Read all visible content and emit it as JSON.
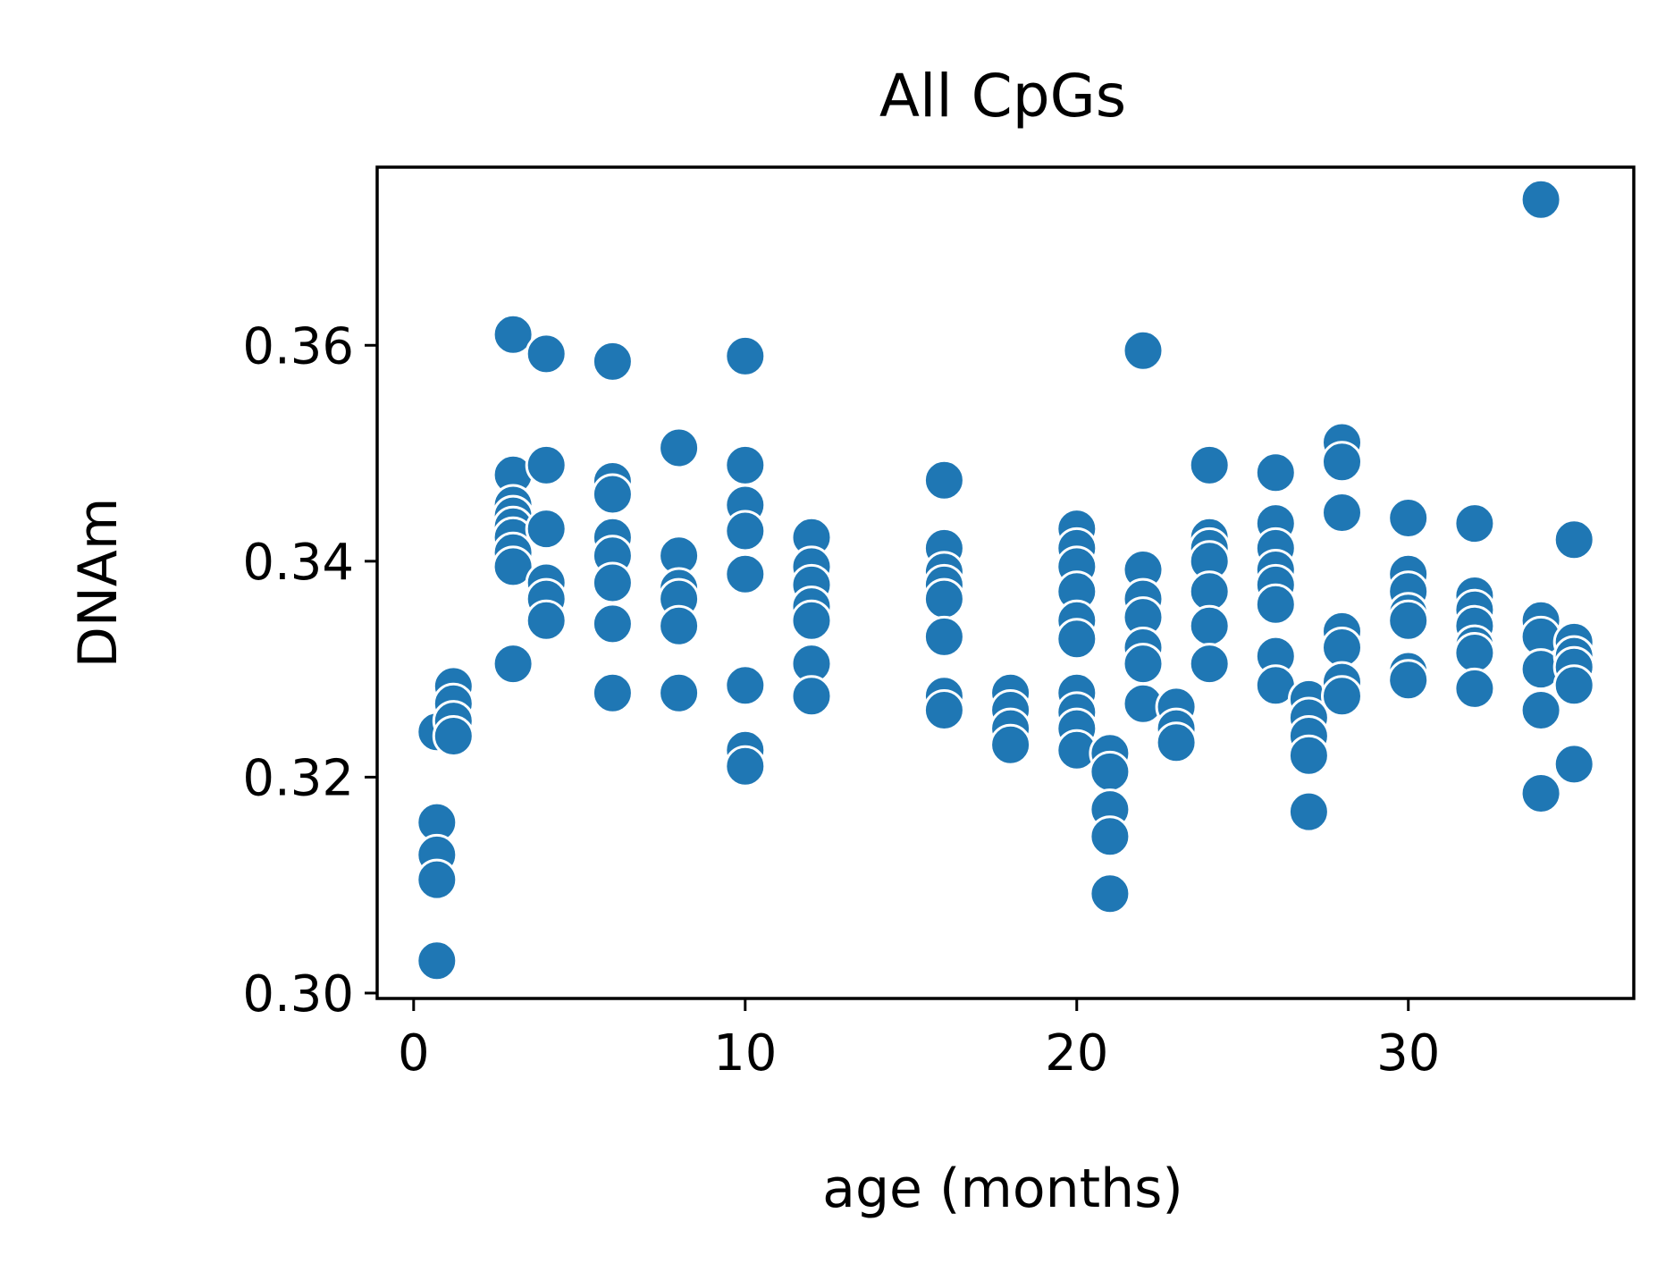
{
  "chart_data": {
    "type": "scatter",
    "title": "All CpGs",
    "xlabel": "age (months)",
    "ylabel": "DNAm",
    "xlim": [
      -1.1,
      36.8
    ],
    "ylim": [
      0.2995,
      0.3765
    ],
    "xticks": [
      0,
      10,
      20,
      30
    ],
    "xtick_labels": [
      "0",
      "10",
      "20",
      "30"
    ],
    "yticks": [
      0.3,
      0.32,
      0.34,
      0.36
    ],
    "ytick_labels": [
      "0.30",
      "0.32",
      "0.34",
      "0.36"
    ],
    "grid": false,
    "color": "#1f77b4",
    "points": [
      [
        0.7,
        0.3242
      ],
      [
        0.7,
        0.3158
      ],
      [
        0.7,
        0.3128
      ],
      [
        0.7,
        0.3105
      ],
      [
        0.7,
        0.303
      ],
      [
        1.2,
        0.3284
      ],
      [
        1.2,
        0.3268
      ],
      [
        1.2,
        0.3252
      ],
      [
        1.2,
        0.3238
      ],
      [
        3,
        0.361
      ],
      [
        3,
        0.348
      ],
      [
        3,
        0.3452
      ],
      [
        3,
        0.3442
      ],
      [
        3,
        0.3432
      ],
      [
        3,
        0.3422
      ],
      [
        3,
        0.3408
      ],
      [
        3,
        0.3395
      ],
      [
        3,
        0.3305
      ],
      [
        4,
        0.3592
      ],
      [
        4,
        0.3489
      ],
      [
        4,
        0.343
      ],
      [
        4,
        0.338
      ],
      [
        4,
        0.3365
      ],
      [
        4,
        0.3345
      ],
      [
        6,
        0.3585
      ],
      [
        6,
        0.3474
      ],
      [
        6,
        0.3462
      ],
      [
        6,
        0.3422
      ],
      [
        6,
        0.3405
      ],
      [
        6,
        0.338
      ],
      [
        6,
        0.3342
      ],
      [
        6,
        0.3278
      ],
      [
        8,
        0.3505
      ],
      [
        8,
        0.3405
      ],
      [
        8,
        0.3375
      ],
      [
        8,
        0.3365
      ],
      [
        8,
        0.334
      ],
      [
        8,
        0.3278
      ],
      [
        10,
        0.359
      ],
      [
        10,
        0.3489
      ],
      [
        10,
        0.3452
      ],
      [
        10,
        0.3428
      ],
      [
        10,
        0.3388
      ],
      [
        10,
        0.3285
      ],
      [
        10,
        0.3225
      ],
      [
        10,
        0.321
      ],
      [
        12,
        0.3422
      ],
      [
        12,
        0.3395
      ],
      [
        12,
        0.3378
      ],
      [
        12,
        0.3358
      ],
      [
        12,
        0.3345
      ],
      [
        12,
        0.3305
      ],
      [
        12,
        0.3275
      ],
      [
        16,
        0.3475
      ],
      [
        16,
        0.3412
      ],
      [
        16,
        0.339
      ],
      [
        16,
        0.3378
      ],
      [
        16,
        0.3365
      ],
      [
        16,
        0.333
      ],
      [
        16,
        0.3275
      ],
      [
        16,
        0.3262
      ],
      [
        18,
        0.3278
      ],
      [
        18,
        0.3262
      ],
      [
        18,
        0.3245
      ],
      [
        18,
        0.323
      ],
      [
        20,
        0.343
      ],
      [
        20,
        0.3412
      ],
      [
        20,
        0.3395
      ],
      [
        20,
        0.3372
      ],
      [
        20,
        0.3345
      ],
      [
        20,
        0.3328
      ],
      [
        20,
        0.3278
      ],
      [
        20,
        0.326
      ],
      [
        20,
        0.3245
      ],
      [
        20,
        0.3225
      ],
      [
        21,
        0.3222
      ],
      [
        21,
        0.3205
      ],
      [
        21,
        0.317
      ],
      [
        21,
        0.3145
      ],
      [
        21,
        0.3092
      ],
      [
        22,
        0.3595
      ],
      [
        22,
        0.3392
      ],
      [
        22,
        0.3365
      ],
      [
        22,
        0.3348
      ],
      [
        22,
        0.332
      ],
      [
        22,
        0.3305
      ],
      [
        22,
        0.3268
      ],
      [
        23,
        0.3265
      ],
      [
        23,
        0.3245
      ],
      [
        23,
        0.3232
      ],
      [
        24,
        0.3489
      ],
      [
        24,
        0.3422
      ],
      [
        24,
        0.3412
      ],
      [
        24,
        0.34
      ],
      [
        24,
        0.3372
      ],
      [
        24,
        0.334
      ],
      [
        24,
        0.3305
      ],
      [
        26,
        0.3482
      ],
      [
        26,
        0.3435
      ],
      [
        26,
        0.3412
      ],
      [
        26,
        0.3392
      ],
      [
        26,
        0.3378
      ],
      [
        26,
        0.336
      ],
      [
        26,
        0.3312
      ],
      [
        26,
        0.3285
      ],
      [
        27,
        0.3272
      ],
      [
        27,
        0.3255
      ],
      [
        27,
        0.3238
      ],
      [
        27,
        0.322
      ],
      [
        27,
        0.3168
      ],
      [
        28,
        0.351
      ],
      [
        28,
        0.3492
      ],
      [
        28,
        0.3445
      ],
      [
        28,
        0.3335
      ],
      [
        28,
        0.332
      ],
      [
        28,
        0.3288
      ],
      [
        28,
        0.3275
      ],
      [
        30,
        0.344
      ],
      [
        30,
        0.3388
      ],
      [
        30,
        0.3372
      ],
      [
        30,
        0.3352
      ],
      [
        30,
        0.3345
      ],
      [
        30,
        0.3298
      ],
      [
        30,
        0.329
      ],
      [
        32,
        0.3435
      ],
      [
        32,
        0.3368
      ],
      [
        32,
        0.3355
      ],
      [
        32,
        0.334
      ],
      [
        32,
        0.3322
      ],
      [
        32,
        0.3315
      ],
      [
        32,
        0.3282
      ],
      [
        34,
        0.3735
      ],
      [
        34,
        0.3345
      ],
      [
        34,
        0.333
      ],
      [
        34,
        0.33
      ],
      [
        34,
        0.3262
      ],
      [
        34,
        0.3185
      ],
      [
        35,
        0.342
      ],
      [
        35,
        0.3325
      ],
      [
        35,
        0.3312
      ],
      [
        35,
        0.3302
      ],
      [
        35,
        0.3285
      ],
      [
        35,
        0.3212
      ]
    ]
  }
}
